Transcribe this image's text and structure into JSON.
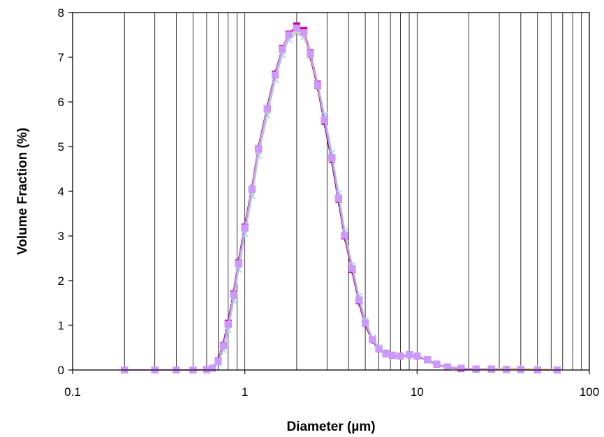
{
  "chart_data": {
    "type": "line",
    "title": "",
    "xlabel": "Diameter (µm)",
    "ylabel": "Volume Fraction (%)",
    "x_scale": "log",
    "xlim": [
      0.1,
      100
    ],
    "ylim": [
      0,
      8
    ],
    "x_ticks": [
      0.1,
      1,
      10,
      100
    ],
    "x_tick_labels": [
      "0.1",
      "1",
      "10",
      "100"
    ],
    "y_ticks": [
      0,
      1,
      2,
      3,
      4,
      5,
      6,
      7,
      8
    ],
    "y_tick_labels": [
      "0",
      "1",
      "2",
      "3",
      "4",
      "5",
      "6",
      "7",
      "8"
    ],
    "grid": "vertical minor lines on log x-axis",
    "legend": "none",
    "x": [
      0.2,
      0.3,
      0.4,
      0.5,
      0.6,
      0.65,
      0.7,
      0.75,
      0.8,
      0.86,
      0.92,
      1.0,
      1.1,
      1.2,
      1.35,
      1.5,
      1.65,
      1.8,
      2.0,
      2.2,
      2.4,
      2.65,
      2.9,
      3.2,
      3.5,
      3.8,
      4.2,
      4.6,
      5.0,
      5.5,
      6.0,
      6.6,
      7.2,
      8.0,
      9.0,
      10.0,
      11.5,
      13.0,
      15.0,
      18.0,
      22.0,
      27.0,
      33.0,
      40.0,
      50.0,
      65.0
    ],
    "series": [
      {
        "color": "#7b1c4c",
        "marker": "plus",
        "values": [
          0,
          0,
          0,
          0,
          0.01,
          0.05,
          0.22,
          0.6,
          1.1,
          1.75,
          2.45,
          3.25,
          4.1,
          5.0,
          5.9,
          6.65,
          7.2,
          7.5,
          7.65,
          7.5,
          7.0,
          6.3,
          5.5,
          4.65,
          3.75,
          2.95,
          2.2,
          1.5,
          1.0,
          0.65,
          0.45,
          0.35,
          0.32,
          0.3,
          0.33,
          0.3,
          0.22,
          0.12,
          0.06,
          0.03,
          0.02,
          0.02,
          0.01,
          0.01,
          0,
          0
        ]
      },
      {
        "color": "#cc0099",
        "marker": "square",
        "values": [
          0,
          0,
          0,
          0,
          0.01,
          0.04,
          0.2,
          0.55,
          1.05,
          1.7,
          2.4,
          3.2,
          4.05,
          4.95,
          5.85,
          6.62,
          7.2,
          7.52,
          7.7,
          7.6,
          7.1,
          6.4,
          5.6,
          4.75,
          3.85,
          3.0,
          2.25,
          1.55,
          1.05,
          0.68,
          0.47,
          0.37,
          0.33,
          0.31,
          0.34,
          0.31,
          0.23,
          0.13,
          0.07,
          0.03,
          0.02,
          0.02,
          0.01,
          0.01,
          0,
          0
        ]
      },
      {
        "color": "#99ccff",
        "marker": "x",
        "values": [
          0,
          0,
          0,
          0,
          0.01,
          0.03,
          0.15,
          0.45,
          0.9,
          1.55,
          2.25,
          3.05,
          3.9,
          4.8,
          5.7,
          6.5,
          7.05,
          7.4,
          7.55,
          7.45,
          7.05,
          6.4,
          5.7,
          4.85,
          3.95,
          3.1,
          2.35,
          1.65,
          1.1,
          0.72,
          0.5,
          0.38,
          0.34,
          0.32,
          0.35,
          0.32,
          0.24,
          0.14,
          0.07,
          0.04,
          0.02,
          0.02,
          0.01,
          0.01,
          0,
          0
        ]
      },
      {
        "color": "#ffcc66",
        "marker": "star",
        "values": [
          0,
          0,
          0,
          0,
          0.01,
          0.04,
          0.18,
          0.52,
          1.0,
          1.65,
          2.35,
          3.15,
          4.0,
          4.9,
          5.8,
          6.58,
          7.15,
          7.48,
          7.6,
          7.5,
          7.05,
          6.35,
          5.6,
          4.75,
          3.85,
          3.05,
          2.3,
          1.6,
          1.05,
          0.68,
          0.47,
          0.36,
          0.33,
          0.31,
          0.34,
          0.31,
          0.23,
          0.13,
          0.07,
          0.04,
          0.03,
          0.03,
          0.04,
          0.03,
          0.02,
          0.01
        ]
      },
      {
        "color": "#cc99ff",
        "marker": "square",
        "values": [
          0,
          0,
          0,
          0,
          0.01,
          0.04,
          0.19,
          0.54,
          1.02,
          1.68,
          2.38,
          3.18,
          4.05,
          4.95,
          5.85,
          6.6,
          7.18,
          7.5,
          7.65,
          7.55,
          7.08,
          6.38,
          5.6,
          4.75,
          3.85,
          3.02,
          2.27,
          1.57,
          1.05,
          0.68,
          0.47,
          0.36,
          0.33,
          0.31,
          0.34,
          0.31,
          0.23,
          0.13,
          0.07,
          0.04,
          0.02,
          0.02,
          0.01,
          0.01,
          0,
          0
        ]
      }
    ]
  }
}
